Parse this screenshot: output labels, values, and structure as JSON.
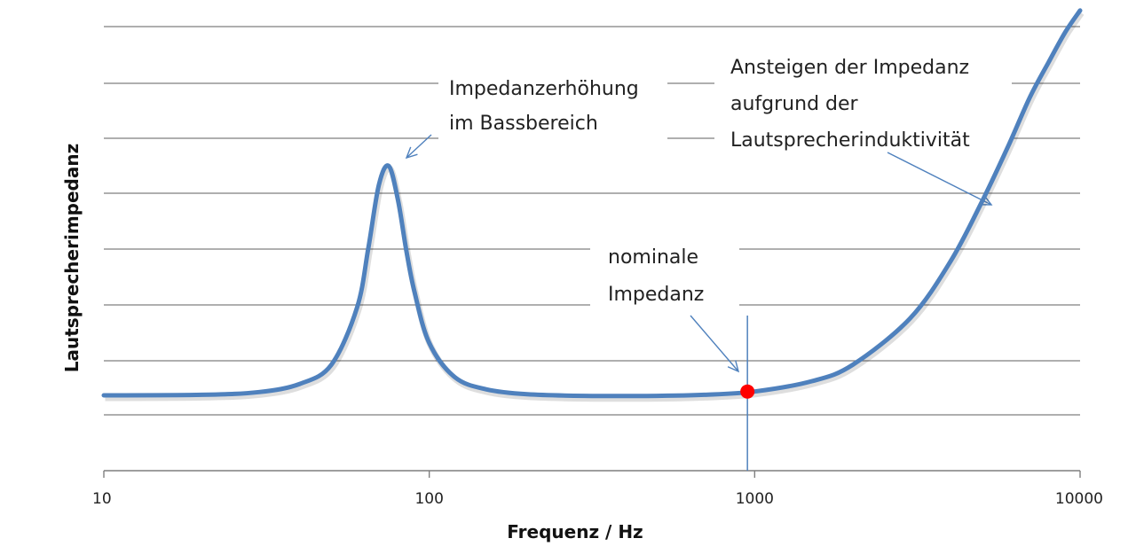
{
  "chart_data": {
    "type": "line",
    "title": "",
    "xlabel": "Frequenz / Hz",
    "ylabel": "Lautsprecherimpedanz",
    "x_scale": "log",
    "xlim": [
      10,
      10000
    ],
    "x_ticks": [
      "10",
      "100",
      "1000",
      "10000"
    ],
    "y_ticks_labeled": false,
    "grid": "horizontal",
    "series": [
      {
        "color": "#4f81bd",
        "x": [
          10,
          20,
          30,
          40,
          50,
          60,
          65,
          70,
          75,
          80,
          85,
          90,
          100,
          120,
          150,
          200,
          300,
          500,
          700,
          1000,
          1500,
          2000,
          3000,
          4000,
          5000,
          6000,
          7000,
          8000,
          9000,
          10000
        ],
        "y": [
          0.39,
          0.4,
          0.45,
          0.6,
          0.95,
          2.0,
          3.1,
          4.25,
          4.6,
          4.0,
          3.05,
          2.3,
          1.35,
          0.72,
          0.5,
          0.41,
          0.38,
          0.38,
          0.4,
          0.46,
          0.65,
          0.95,
          1.8,
          2.85,
          3.95,
          4.95,
          5.85,
          6.5,
          7.05,
          7.45
        ]
      }
    ],
    "highlight_point": {
      "x": 950,
      "y": 0.46,
      "color": "#ff0000"
    },
    "annotations": [
      {
        "lines": [
          "Impedanzerhöhung",
          "im Bassbereich"
        ]
      },
      {
        "lines": [
          "Ansteigen der Impedanz",
          "aufgrund der",
          "Lautsprecherinduktivität"
        ]
      },
      {
        "lines": [
          "nominale",
          "Impedanz"
        ]
      }
    ]
  }
}
